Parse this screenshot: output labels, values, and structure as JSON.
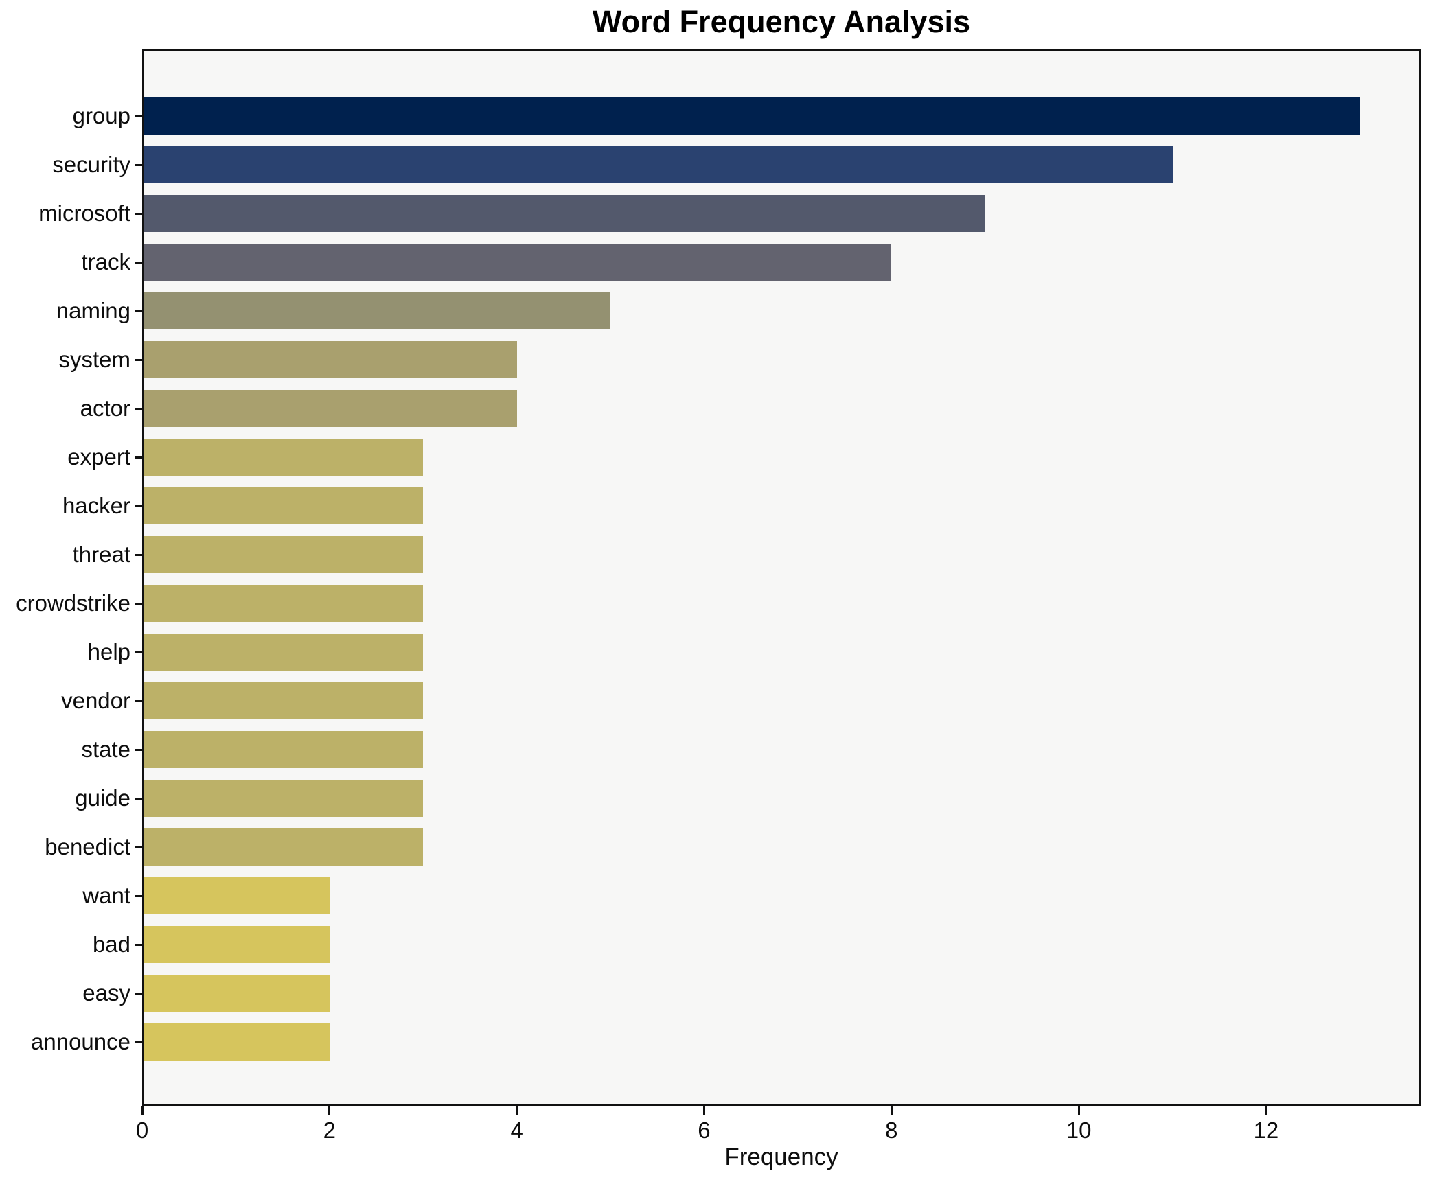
{
  "figure": {
    "title": "Word Frequency Analysis",
    "x_axis_label": "Frequency"
  },
  "chart_data": {
    "type": "bar",
    "orientation": "horizontal",
    "title": "Word Frequency Analysis",
    "xlabel": "Frequency",
    "ylabel": "",
    "categories": [
      "group",
      "security",
      "microsoft",
      "track",
      "naming",
      "system",
      "actor",
      "expert",
      "hacker",
      "threat",
      "crowdstrike",
      "help",
      "vendor",
      "state",
      "guide",
      "benedict",
      "want",
      "bad",
      "easy",
      "announce"
    ],
    "values": [
      13,
      11,
      9,
      8,
      5,
      4,
      4,
      3,
      3,
      3,
      3,
      3,
      3,
      3,
      3,
      3,
      2,
      2,
      2,
      2
    ],
    "bar_colors": [
      "#00214e",
      "#2a4270",
      "#53596c",
      "#63636f",
      "#949171",
      "#a9a06e",
      "#a9a06e",
      "#bcb168",
      "#bcb168",
      "#bcb168",
      "#bcb168",
      "#bcb168",
      "#bcb168",
      "#bcb168",
      "#bcb168",
      "#bcb168",
      "#d6c55d",
      "#d6c55d",
      "#d6c55d",
      "#d6c55d"
    ],
    "xlim": [
      0,
      13.65
    ],
    "xticks": [
      0,
      2,
      4,
      6,
      8,
      10,
      12
    ],
    "grid": false,
    "legend": null,
    "plot_background": "#f7f7f6",
    "figure_background": "#ffffff",
    "frame_color": "#111111",
    "text_color": "#0d0d0d"
  }
}
